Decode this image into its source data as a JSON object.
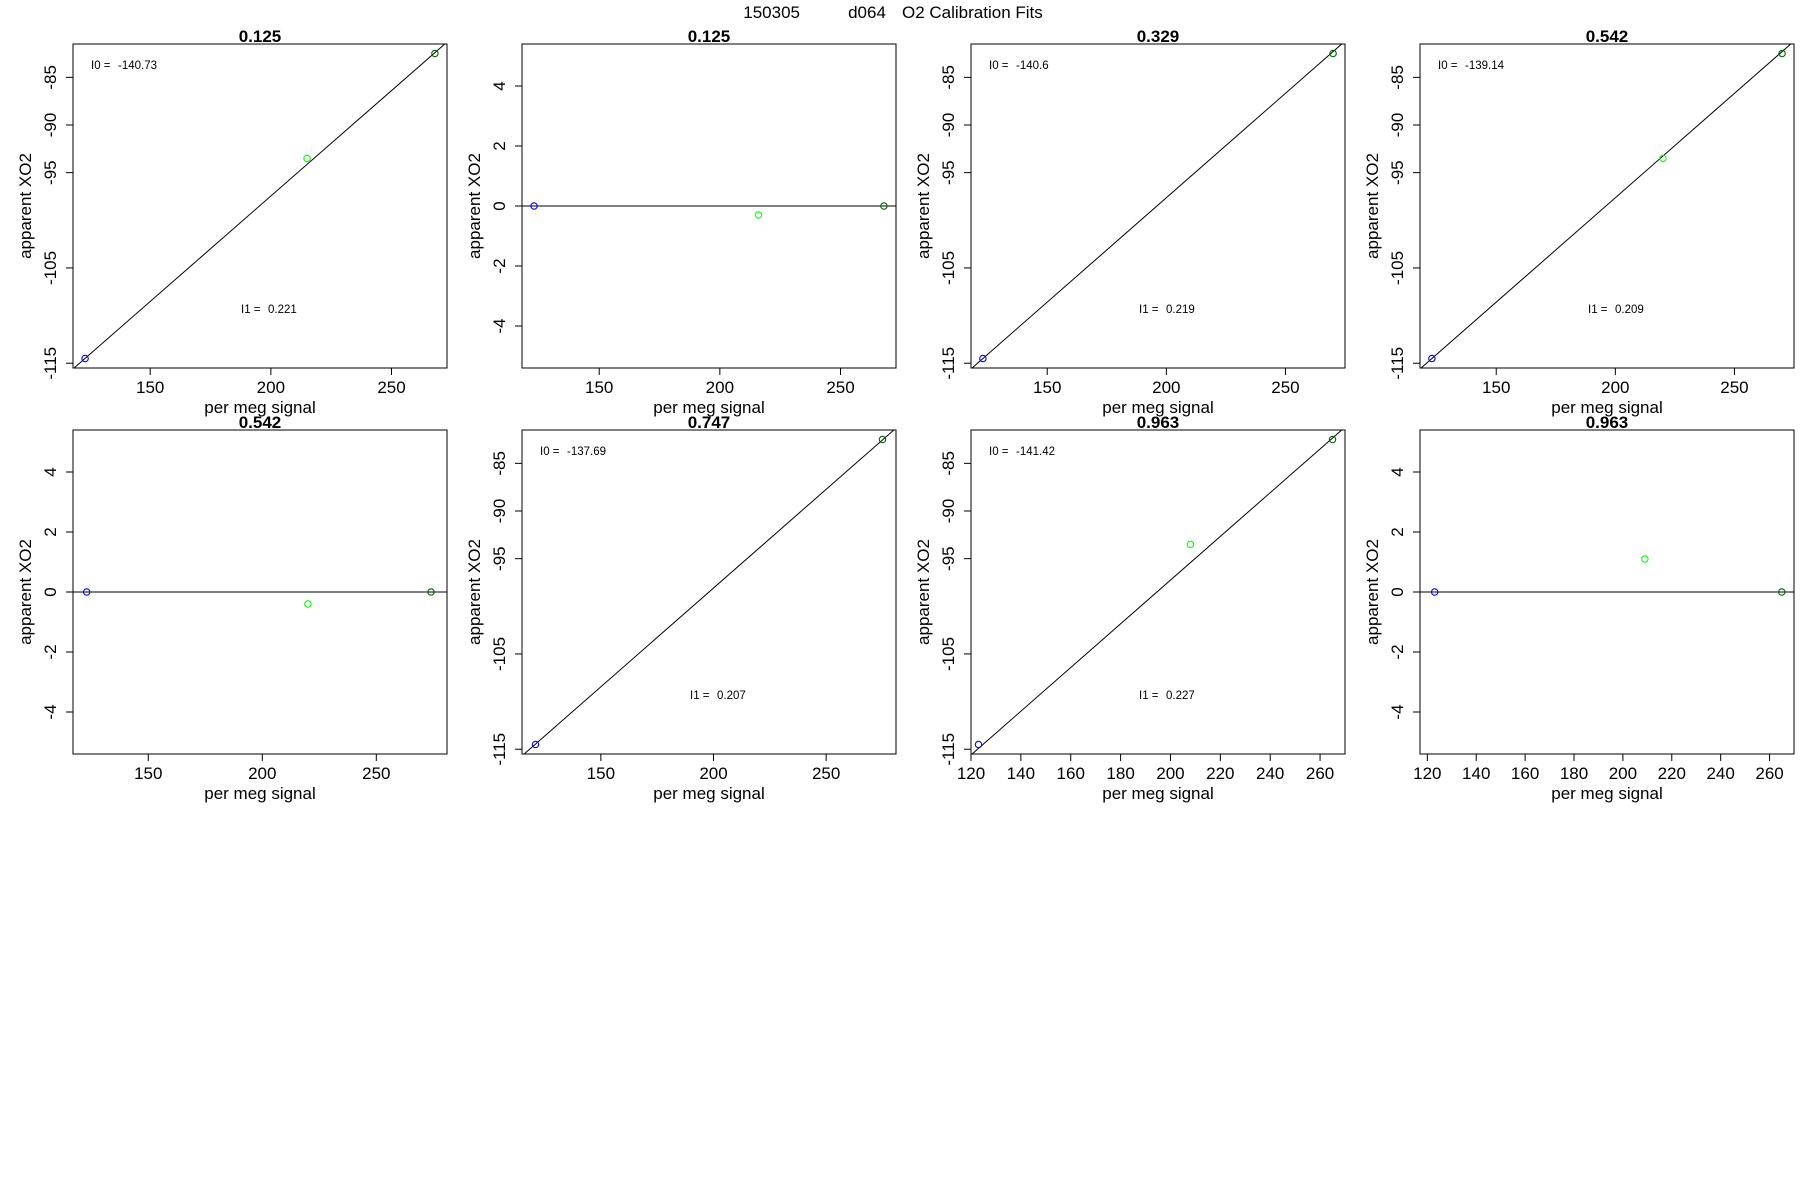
{
  "figure": {
    "title_parts": [
      "150305",
      "d064",
      "O2 Calibration Fits"
    ]
  },
  "colors": {
    "line": "#000000",
    "frame": "#000000",
    "point_low": "#0000ff",
    "point_mid": "#00ff00",
    "point_high": "#006400"
  },
  "chart_data": [
    {
      "type": "scatter",
      "title": "0.125",
      "xlabel": "per meg signal",
      "ylabel": "apparent XO2",
      "xlim": [
        118,
        273
      ],
      "ylim": [
        -115.5,
        -81.5
      ],
      "x_ticks": [
        150,
        200,
        250
      ],
      "y_ticks": [
        -85,
        -90,
        -95,
        -105,
        -115
      ],
      "points": [
        {
          "x": 123,
          "y": -114.5
        },
        {
          "x": 215,
          "y": -93.5
        },
        {
          "x": 268,
          "y": -82.5
        }
      ],
      "fit_line": [
        {
          "x": 118,
          "y": -115.6
        },
        {
          "x": 273,
          "y": -81.3
        }
      ],
      "annotations": [
        {
          "label": "I0 =",
          "value": "-140.73"
        },
        {
          "label": "I1 =",
          "value": "0.221"
        }
      ]
    },
    {
      "type": "scatter",
      "title": "0.125",
      "xlabel": "per meg signal",
      "ylabel": "apparent XO2",
      "xlim": [
        118,
        273
      ],
      "ylim": [
        -5.4,
        5.4
      ],
      "x_ticks": [
        150,
        200,
        250
      ],
      "y_ticks": [
        4,
        2,
        0,
        -2,
        -4
      ],
      "points": [
        {
          "x": 123,
          "y": 0
        },
        {
          "x": 216,
          "y": -0.3
        },
        {
          "x": 268,
          "y": 0
        }
      ],
      "fit_line": [
        {
          "x": 118,
          "y": 0
        },
        {
          "x": 273,
          "y": 0
        }
      ],
      "annotations": []
    },
    {
      "type": "scatter",
      "title": "0.329",
      "xlabel": "per meg signal",
      "ylabel": "apparent XO2",
      "xlim": [
        118,
        275
      ],
      "ylim": [
        -115.5,
        -81.5
      ],
      "x_ticks": [
        150,
        200,
        250
      ],
      "y_ticks": [
        -85,
        -90,
        -95,
        -105,
        -115
      ],
      "points": [
        {
          "x": 123,
          "y": -114.5
        },
        {
          "x": 270,
          "y": -82.5
        }
      ],
      "fit_line": [
        {
          "x": 118,
          "y": -115.6
        },
        {
          "x": 275,
          "y": -81.2
        }
      ],
      "annotations": [
        {
          "label": "I0 =",
          "value": "-140.6"
        },
        {
          "label": "I1 =",
          "value": "0.219"
        }
      ]
    },
    {
      "type": "scatter",
      "title": "0.542",
      "xlabel": "per meg signal",
      "ylabel": "apparent XO2",
      "xlim": [
        118,
        275
      ],
      "ylim": [
        -115.5,
        -81.5
      ],
      "x_ticks": [
        150,
        200,
        250
      ],
      "y_ticks": [
        -85,
        -90,
        -95,
        -105,
        -115
      ],
      "points": [
        {
          "x": 123,
          "y": -114.5
        },
        {
          "x": 220,
          "y": -93.5
        },
        {
          "x": 270,
          "y": -82.5
        }
      ],
      "fit_line": [
        {
          "x": 118,
          "y": -115.6
        },
        {
          "x": 275,
          "y": -81.2
        }
      ],
      "annotations": [
        {
          "label": "I0 =",
          "value": "-139.14"
        },
        {
          "label": "I1 =",
          "value": "0.209"
        }
      ]
    },
    {
      "type": "scatter",
      "title": "0.542",
      "xlabel": "per meg signal",
      "ylabel": "apparent XO2",
      "xlim": [
        117,
        281
      ],
      "ylim": [
        -5.4,
        5.4
      ],
      "x_ticks": [
        150,
        200,
        250
      ],
      "y_ticks": [
        4,
        2,
        0,
        -2,
        -4
      ],
      "points": [
        {
          "x": 123,
          "y": 0
        },
        {
          "x": 220,
          "y": -0.4
        },
        {
          "x": 274,
          "y": 0
        }
      ],
      "fit_line": [
        {
          "x": 117,
          "y": 0
        },
        {
          "x": 281,
          "y": 0
        }
      ],
      "annotations": []
    },
    {
      "type": "scatter",
      "title": "0.747",
      "xlabel": "per meg signal",
      "ylabel": "apparent XO2",
      "xlim": [
        115,
        281
      ],
      "ylim": [
        -115.5,
        -81.5
      ],
      "x_ticks": [
        150,
        200,
        250
      ],
      "y_ticks": [
        -85,
        -90,
        -95,
        -105,
        -115
      ],
      "points": [
        {
          "x": 121,
          "y": -114.5
        },
        {
          "x": 275,
          "y": -82.5
        }
      ],
      "fit_line": [
        {
          "x": 115,
          "y": -115.7
        },
        {
          "x": 281,
          "y": -81.3
        }
      ],
      "annotations": [
        {
          "label": "I0 =",
          "value": "-137.69"
        },
        {
          "label": "I1 =",
          "value": "0.207"
        }
      ]
    },
    {
      "type": "scatter",
      "title": "0.963",
      "xlabel": "per meg signal",
      "ylabel": "apparent XO2",
      "xlim": [
        120,
        270
      ],
      "ylim": [
        -115.5,
        -81.5
      ],
      "x_ticks": [
        120,
        140,
        160,
        180,
        200,
        220,
        240,
        260
      ],
      "y_ticks": [
        -85,
        -90,
        -95,
        -105,
        -115
      ],
      "points": [
        {
          "x": 123,
          "y": -114.5
        },
        {
          "x": 208,
          "y": -93.5
        },
        {
          "x": 265,
          "y": -82.5
        }
      ],
      "fit_line": [
        {
          "x": 120,
          "y": -115.6
        },
        {
          "x": 270,
          "y": -81.2
        }
      ],
      "annotations": [
        {
          "label": "I0 =",
          "value": "-141.42"
        },
        {
          "label": "I1 =",
          "value": "0.227"
        }
      ]
    },
    {
      "type": "scatter",
      "title": "0.963",
      "xlabel": "per meg signal",
      "ylabel": "apparent XO2",
      "xlim": [
        117,
        270
      ],
      "ylim": [
        -5.4,
        5.4
      ],
      "x_ticks": [
        120,
        140,
        160,
        180,
        200,
        220,
        240,
        260
      ],
      "y_ticks": [
        4,
        2,
        0,
        -2,
        -4
      ],
      "points": [
        {
          "x": 123,
          "y": 0
        },
        {
          "x": 209,
          "y": 1.1
        },
        {
          "x": 265,
          "y": 0
        }
      ],
      "fit_line": [
        {
          "x": 117,
          "y": 0
        },
        {
          "x": 270,
          "y": 0
        }
      ],
      "annotations": []
    }
  ]
}
